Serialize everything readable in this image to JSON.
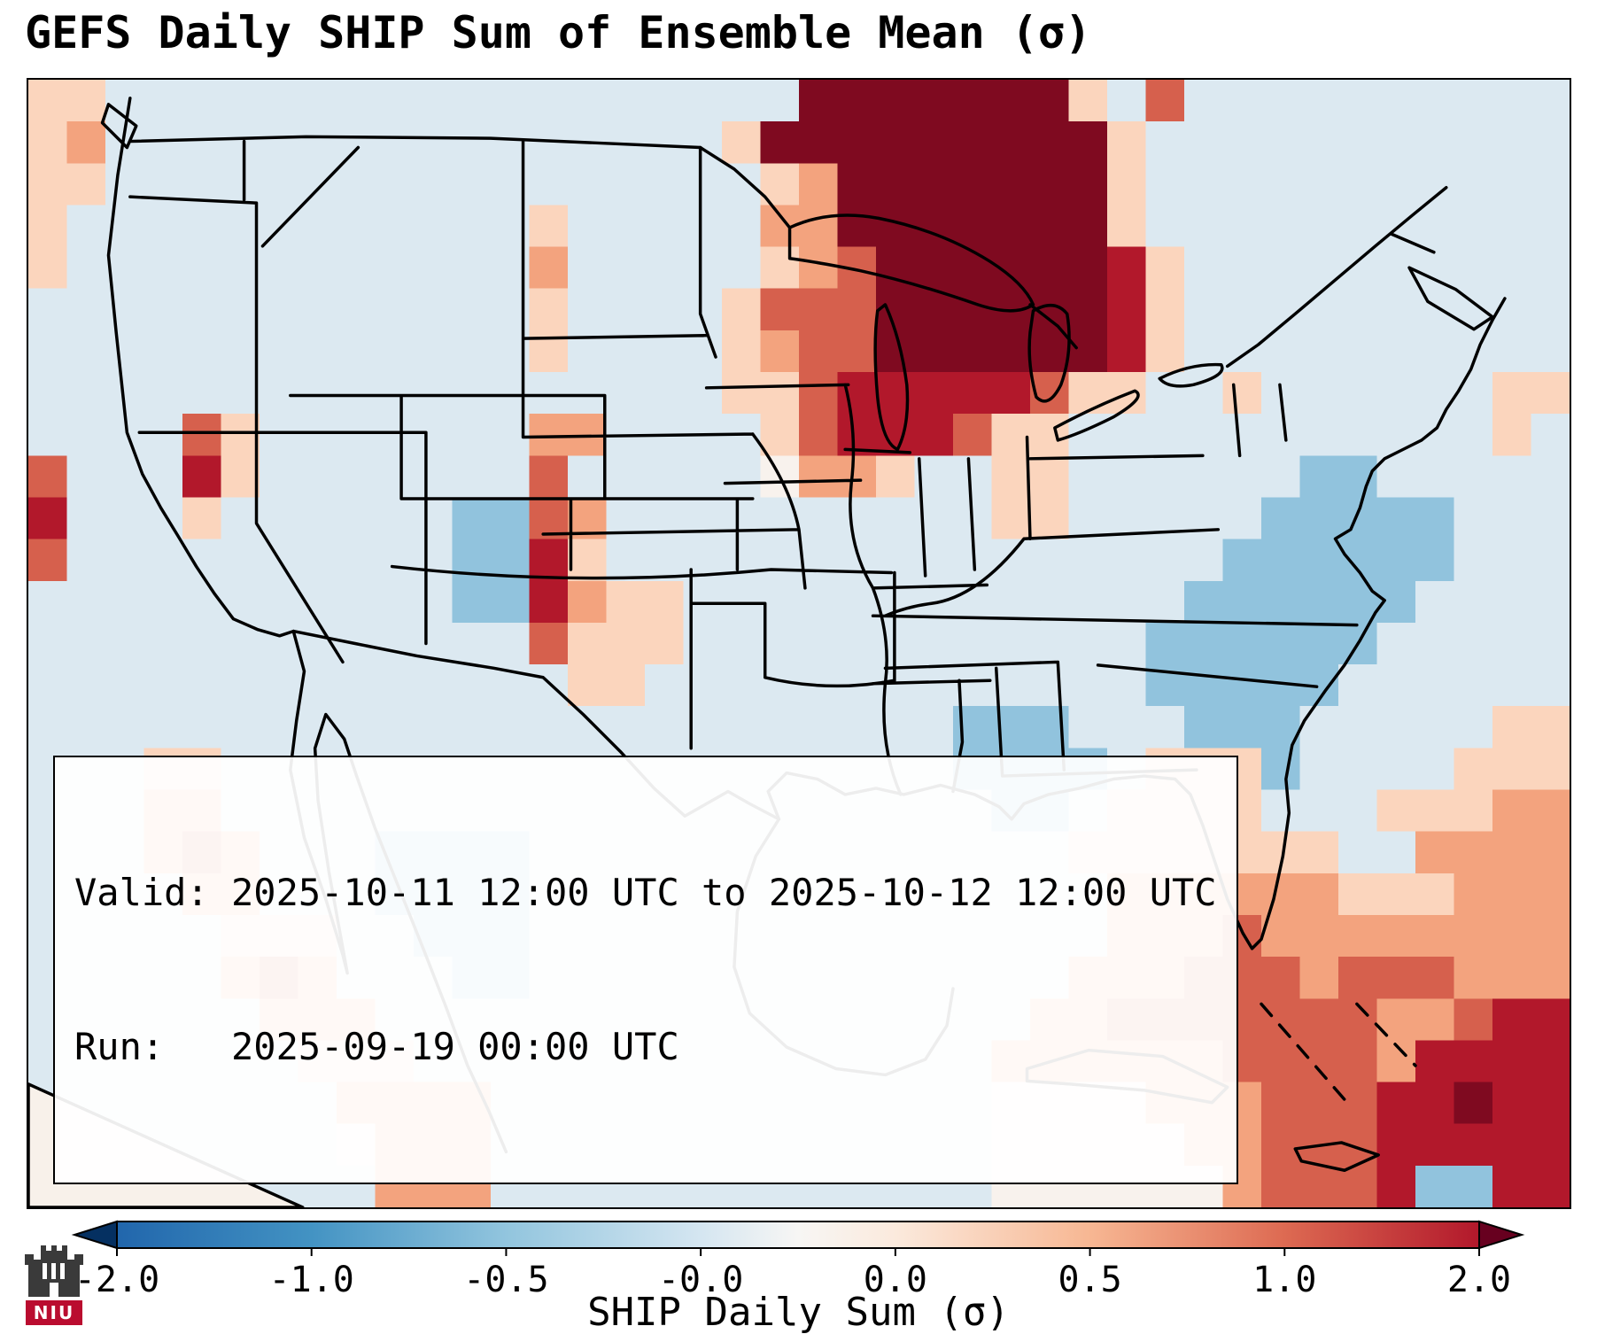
{
  "title": "GEFS Daily SHIP Sum of Ensemble Mean (σ)",
  "map": {
    "info_box": {
      "line1": "Valid: 2025-10-11 12:00 UTC to 2025-10-12 12:00 UTC",
      "line2": "Run:   2025-09-19 00:00 UTC"
    }
  },
  "colorbar": {
    "label": "SHIP Daily Sum (σ)",
    "ticks": [
      "-2.0",
      "-1.0",
      "-0.5",
      "-0.0",
      "0.0",
      "0.5",
      "1.0",
      "2.0"
    ],
    "arrow_left_color": "#053061",
    "arrow_right_color": "#67001f"
  },
  "logo": {
    "text": "NIU",
    "color": "#ba0c2f"
  },
  "chart_data": {
    "type": "heatmap",
    "title": "GEFS Daily SHIP Sum of Ensemble Mean (σ)",
    "colorbar_label": "SHIP Daily Sum (σ)",
    "colorbar_ticks": [
      -2.0,
      -1.0,
      -0.5,
      -0.0,
      0.0,
      0.5,
      1.0,
      2.0
    ],
    "valid_period": "2025-10-11 12:00 UTC to 2025-10-12 12:00 UTC",
    "run": "2025-09-19 00:00 UTC",
    "grid_encoding": {
      ".": -0.12,
      "0": 0.05,
      "b": -0.55,
      "p": 0.4,
      "o": 0.75,
      "r": 1.35,
      "R": 2.0,
      "X": 2.6
    },
    "grid": [
      "pp..................XXXXXXXp.r..........",
      "po................pXXXXXXXXXp...........",
      "pp.................poXXXXXXXp...........",
      "p............p.....ooXXXXXXXp...........",
      "p............o.....porXXXXXXRp..........",
      ".............p....prrrXXXXXXRp..........",
      ".............p....porrXXXXXXRp..........",
      "..................pprRRRRRrpp..p......pp",
      "....rp.......oo....prRRRrpp...........p.",
      "r...Rp.......r.....0oop..pp......bb.....",
      "R...p......bbro..........pp.....bbbbb...",
      "r..........bbRp................bbbbbb...",
      "...........bbRopp.............bbbbbb....",
      ".............rppp............bbbbbb.....",
      "..............pp.............bbbbb......",
      "........................bbb...bbb.....pp",
      "...pp...................bbbb.pppb....ppp",
      "...oo....................bb.pppp...pppoo",
      "...oro...bbbb..............ppppppp..oooo",
      "....oo...bbbb...............oooooopppooo",
      ".....ppp..bbb...............oooroooooooo",
      ".....oro...bb..............ooorrrorrrooo",
      "......ooo.................oorrrrrrroorRR",
      ".......ppp...............oooooorrrroRRRR",
      "........oooo.............0000ooorrrRRXRR",
      "........0ooo.............00000oorrrRRRRR",
      "00.......ooo.............000000orrrRbbRR"
    ],
    "colormap_stops": [
      {
        "v": -2.6,
        "c": "#053061"
      },
      {
        "v": -2.0,
        "c": "#2166ac"
      },
      {
        "v": -1.0,
        "c": "#4393c3"
      },
      {
        "v": -0.5,
        "c": "#9ac8e0"
      },
      {
        "v": -0.15,
        "c": "#d5e6f1"
      },
      {
        "v": 0.0,
        "c": "#f7f5f3"
      },
      {
        "v": 0.2,
        "c": "#fce9dc"
      },
      {
        "v": 0.45,
        "c": "#fbd0b5"
      },
      {
        "v": 0.7,
        "c": "#f5a982"
      },
      {
        "v": 1.35,
        "c": "#d6604d"
      },
      {
        "v": 2.0,
        "c": "#b2182b"
      },
      {
        "v": 2.6,
        "c": "#7f0a20"
      }
    ],
    "colorbar_stops": [
      {
        "pos": 0.0,
        "color": "#2166ac"
      },
      {
        "pos": 0.143,
        "color": "#4393c3"
      },
      {
        "pos": 0.286,
        "color": "#92c5de"
      },
      {
        "pos": 0.429,
        "color": "#d5e6f1"
      },
      {
        "pos": 0.5,
        "color": "#f7f6f4"
      },
      {
        "pos": 0.571,
        "color": "#fbeadd"
      },
      {
        "pos": 0.714,
        "color": "#f7b793"
      },
      {
        "pos": 0.857,
        "color": "#dd6a52"
      },
      {
        "pos": 1.0,
        "color": "#b2182b"
      }
    ]
  }
}
